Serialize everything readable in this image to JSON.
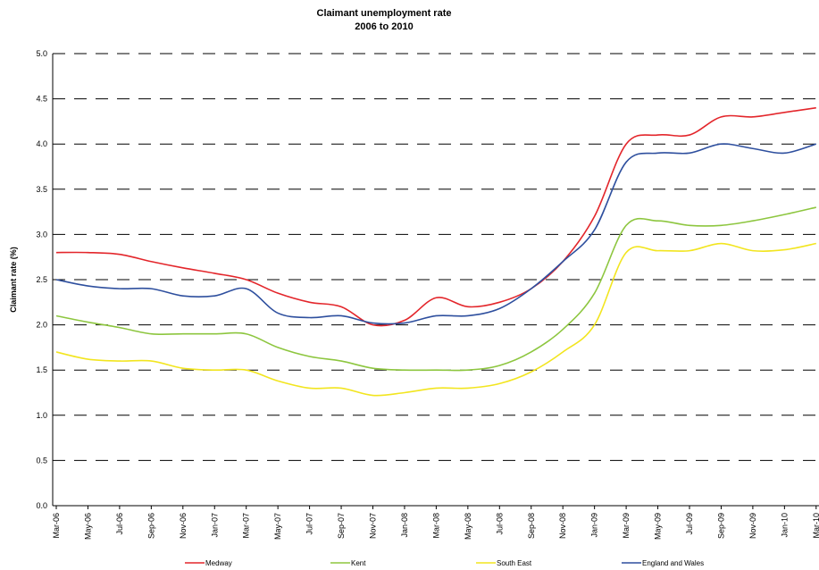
{
  "chart_data": {
    "type": "line",
    "title": "Claimant unemployment rate",
    "subtitle": "2006 to 2010",
    "y_label": "Claimant rate (%)",
    "categories": [
      "Mar-06",
      "May-06",
      "Jul-06",
      "Sep-06",
      "Nov-06",
      "Jan-07",
      "Mar-07",
      "May-07",
      "Jul-07",
      "Sep-07",
      "Nov-07",
      "Jan-08",
      "Mar-08",
      "May-08",
      "Jul-08",
      "Sep-08",
      "Nov-08",
      "Jan-09",
      "Mar-09",
      "May-09",
      "Jul-09",
      "Sep-09",
      "Nov-09",
      "Jan-10",
      "Mar-10"
    ],
    "series": [
      {
        "name": "Medway",
        "color": "#e3262b",
        "values": [
          2.8,
          2.8,
          2.78,
          2.7,
          2.63,
          2.57,
          2.5,
          2.35,
          2.25,
          2.2,
          2.0,
          2.05,
          2.3,
          2.2,
          2.25,
          2.4,
          2.7,
          3.2,
          4.0,
          4.1,
          4.1,
          4.3,
          4.3,
          4.35,
          4.4
        ]
      },
      {
        "name": "Kent",
        "color": "#8dc63f",
        "values": [
          2.1,
          2.03,
          1.97,
          1.9,
          1.9,
          1.9,
          1.9,
          1.75,
          1.65,
          1.6,
          1.52,
          1.5,
          1.5,
          1.5,
          1.55,
          1.7,
          1.95,
          2.35,
          3.1,
          3.15,
          3.1,
          3.1,
          3.15,
          3.22,
          3.3
        ]
      },
      {
        "name": "South East",
        "color": "#f2e51f",
        "values": [
          1.7,
          1.62,
          1.6,
          1.6,
          1.52,
          1.5,
          1.5,
          1.38,
          1.3,
          1.3,
          1.22,
          1.25,
          1.3,
          1.3,
          1.35,
          1.48,
          1.7,
          2.0,
          2.8,
          2.82,
          2.82,
          2.9,
          2.82,
          2.83,
          2.9
        ]
      },
      {
        "name": "England and Wales",
        "color": "#2e4f9e",
        "values": [
          2.5,
          2.43,
          2.4,
          2.4,
          2.32,
          2.32,
          2.4,
          2.13,
          2.08,
          2.1,
          2.02,
          2.02,
          2.1,
          2.1,
          2.18,
          2.4,
          2.7,
          3.05,
          3.8,
          3.9,
          3.9,
          4.0,
          3.95,
          3.9,
          4.0
        ]
      }
    ],
    "ylim": [
      0,
      5
    ],
    "yticks": [
      {
        "value": 0,
        "label": "0.0"
      },
      {
        "value": 0.5,
        "label": "0.5"
      },
      {
        "value": 1,
        "label": "1.0"
      },
      {
        "value": 1.5,
        "label": "1.5"
      },
      {
        "value": 2,
        "label": "2.0"
      },
      {
        "value": 2.5,
        "label": "2.5"
      },
      {
        "value": 3,
        "label": "3.0"
      },
      {
        "value": 3.5,
        "label": "3.5"
      },
      {
        "value": 4,
        "label": "4.0"
      },
      {
        "value": 4.5,
        "label": "4.5"
      },
      {
        "value": 5,
        "label": "5.0"
      }
    ],
    "grid": true,
    "legend": "bottom"
  }
}
